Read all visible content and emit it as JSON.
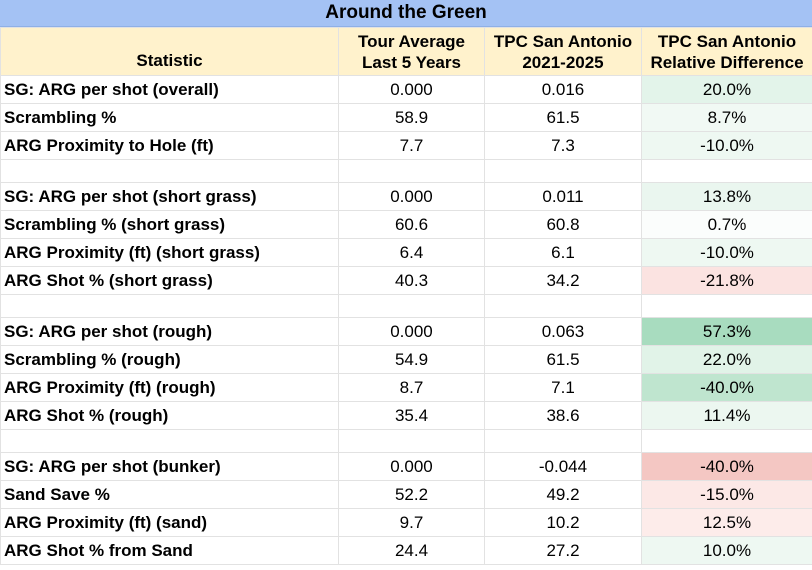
{
  "title": "Around the Green",
  "headers": {
    "statistic": "Statistic",
    "tour_avg_1": "Tour Average",
    "tour_avg_2": "Last 5 Years",
    "tpc_1": "TPC San Antonio",
    "tpc_2": "2021-2025",
    "rel_1": "TPC San Antonio",
    "rel_2": "Relative Difference"
  },
  "rows": [
    {
      "label": "SG: ARG per shot (overall)",
      "tour": "0.000",
      "tpc": "0.016",
      "diff": "20.0%",
      "color": "#e3f4ea"
    },
    {
      "label": "Scrambling %",
      "tour": "58.9",
      "tpc": "61.5",
      "diff": "8.7%",
      "color": "#f1f9f4"
    },
    {
      "label": "ARG Proximity to Hole (ft)",
      "tour": "7.7",
      "tpc": "7.3",
      "diff": "-10.0%",
      "color": "#eef8f2"
    },
    {
      "label": "SG: ARG per shot (short grass)",
      "tour": "0.000",
      "tpc": "0.011",
      "diff": "13.8%",
      "color": "#eaf6ef"
    },
    {
      "label": "Scrambling % (short grass)",
      "tour": "60.6",
      "tpc": "60.8",
      "diff": "0.7%",
      "color": "#fbfdfc"
    },
    {
      "label": "ARG Proximity (ft) (short grass)",
      "tour": "6.4",
      "tpc": "6.1",
      "diff": "-10.0%",
      "color": "#eef8f2"
    },
    {
      "label": "ARG Shot % (short grass)",
      "tour": "40.3",
      "tpc": "34.2",
      "diff": "-21.8%",
      "color": "#fbe3e1"
    },
    {
      "label": "SG: ARG per shot (rough)",
      "tour": "0.000",
      "tpc": "0.063",
      "diff": "57.3%",
      "color": "#a8dcbf"
    },
    {
      "label": "Scrambling % (rough)",
      "tour": "54.9",
      "tpc": "61.5",
      "diff": "22.0%",
      "color": "#e1f3e8"
    },
    {
      "label": "ARG Proximity (ft) (rough)",
      "tour": "8.7",
      "tpc": "7.1",
      "diff": "-40.0%",
      "color": "#bfe5cf"
    },
    {
      "label": "ARG Shot % (rough)",
      "tour": "35.4",
      "tpc": "38.6",
      "diff": "11.4%",
      "color": "#ecf7f0"
    },
    {
      "label": "SG: ARG per shot (bunker)",
      "tour": "0.000",
      "tpc": "-0.044",
      "diff": "-40.0%",
      "color": "#f4c7c3"
    },
    {
      "label": "Sand Save %",
      "tour": "52.2",
      "tpc": "49.2",
      "diff": "-15.0%",
      "color": "#fce8e6"
    },
    {
      "label": "ARG Proximity (ft) (sand)",
      "tour": "9.7",
      "tpc": "10.2",
      "diff": "12.5%",
      "color": "#fdecea"
    },
    {
      "label": "ARG Shot % from Sand",
      "tour": "24.4",
      "tpc": "27.2",
      "diff": "10.0%",
      "color": "#eef8f2"
    }
  ]
}
